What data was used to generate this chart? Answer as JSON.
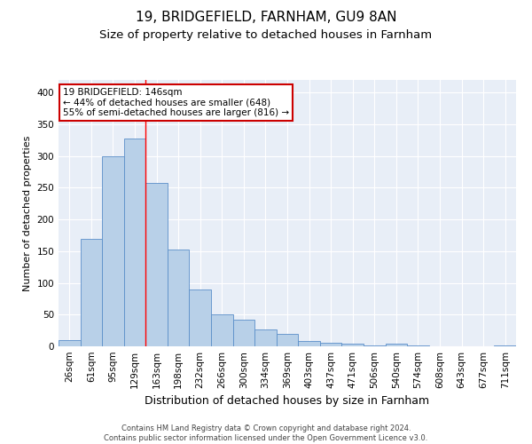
{
  "title1": "19, BRIDGEFIELD, FARNHAM, GU9 8AN",
  "title2": "Size of property relative to detached houses in Farnham",
  "xlabel": "Distribution of detached houses by size in Farnham",
  "ylabel": "Number of detached properties",
  "categories": [
    "26sqm",
    "61sqm",
    "95sqm",
    "129sqm",
    "163sqm",
    "198sqm",
    "232sqm",
    "266sqm",
    "300sqm",
    "334sqm",
    "369sqm",
    "403sqm",
    "437sqm",
    "471sqm",
    "506sqm",
    "540sqm",
    "574sqm",
    "608sqm",
    "643sqm",
    "677sqm",
    "711sqm"
  ],
  "bar_heights": [
    10,
    170,
    300,
    328,
    258,
    152,
    90,
    50,
    42,
    27,
    20,
    9,
    5,
    4,
    1,
    4,
    2,
    0,
    0,
    0,
    2
  ],
  "bar_color": "#b8d0e8",
  "bar_edgecolor": "#5b8fc9",
  "annotation_text": "19 BRIDGEFIELD: 146sqm\n← 44% of detached houses are smaller (648)\n55% of semi-detached houses are larger (816) →",
  "annotation_box_color": "white",
  "annotation_box_edgecolor": "#cc0000",
  "redline_x": 3.5,
  "ylim": [
    0,
    420
  ],
  "yticks": [
    0,
    50,
    100,
    150,
    200,
    250,
    300,
    350,
    400
  ],
  "background_color": "#e8eef7",
  "footer": "Contains HM Land Registry data © Crown copyright and database right 2024.\nContains public sector information licensed under the Open Government Licence v3.0.",
  "title1_fontsize": 11,
  "title2_fontsize": 9.5,
  "xlabel_fontsize": 9,
  "ylabel_fontsize": 8,
  "tick_fontsize": 7.5,
  "annotation_fontsize": 7.5,
  "footer_fontsize": 6
}
